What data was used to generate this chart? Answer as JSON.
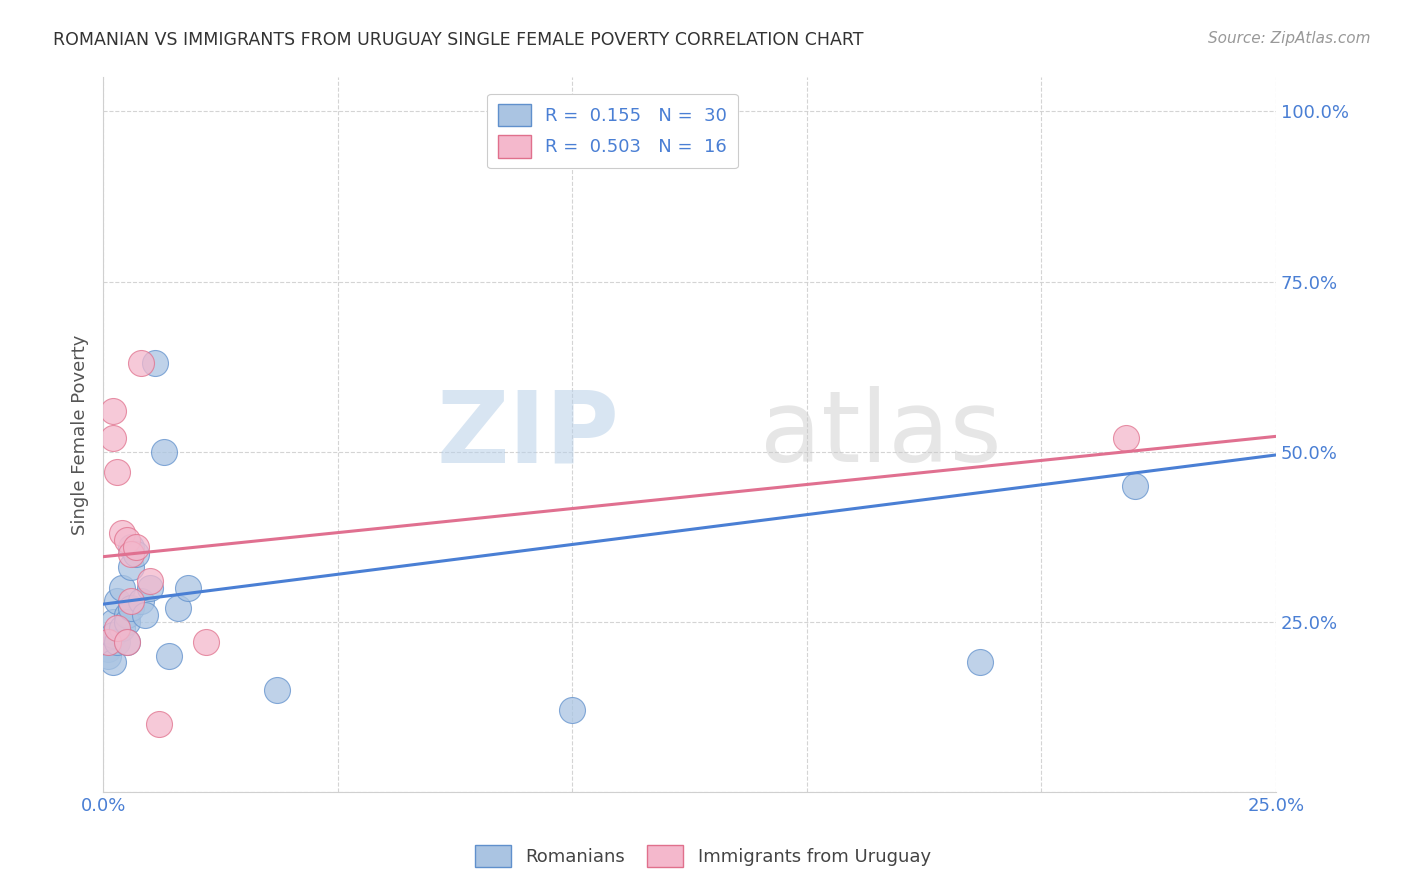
{
  "title": "ROMANIAN VS IMMIGRANTS FROM URUGUAY SINGLE FEMALE POVERTY CORRELATION CHART",
  "source": "Source: ZipAtlas.com",
  "ylabel": "Single Female Poverty",
  "watermark_zip": "ZIP",
  "watermark_atlas": "atlas",
  "blue_R": 0.155,
  "blue_N": 30,
  "pink_R": 0.503,
  "pink_N": 16,
  "blue_color": "#aac4e2",
  "blue_edge_color": "#6090cc",
  "blue_line_color": "#4a7fd4",
  "pink_color": "#f4b8cc",
  "pink_edge_color": "#e0708c",
  "pink_line_color": "#e07090",
  "xlim": [
    0.0,
    0.25
  ],
  "ylim": [
    0.0,
    1.05
  ],
  "ytick_positions": [
    0.0,
    0.25,
    0.5,
    0.75,
    1.0
  ],
  "ytick_labels": [
    "",
    "25.0%",
    "50.0%",
    "75.0%",
    "100.0%"
  ],
  "blue_points_x": [
    0.001,
    0.001,
    0.001,
    0.002,
    0.002,
    0.002,
    0.003,
    0.003,
    0.004,
    0.004,
    0.005,
    0.005,
    0.005,
    0.006,
    0.006,
    0.006,
    0.007,
    0.008,
    0.009,
    0.01,
    0.011,
    0.013,
    0.014,
    0.016,
    0.018,
    0.037,
    0.1,
    0.13,
    0.187,
    0.22
  ],
  "blue_points_y": [
    0.22,
    0.21,
    0.2,
    0.25,
    0.23,
    0.19,
    0.28,
    0.22,
    0.3,
    0.24,
    0.26,
    0.25,
    0.22,
    0.36,
    0.33,
    0.27,
    0.35,
    0.28,
    0.26,
    0.3,
    0.63,
    0.5,
    0.2,
    0.27,
    0.3,
    0.15,
    0.12,
    0.975,
    0.19,
    0.45
  ],
  "pink_points_x": [
    0.001,
    0.002,
    0.002,
    0.003,
    0.003,
    0.004,
    0.005,
    0.005,
    0.006,
    0.006,
    0.007,
    0.008,
    0.01,
    0.012,
    0.022,
    0.218
  ],
  "pink_points_y": [
    0.22,
    0.56,
    0.52,
    0.47,
    0.24,
    0.38,
    0.37,
    0.22,
    0.35,
    0.28,
    0.36,
    0.63,
    0.31,
    0.1,
    0.22,
    0.52
  ],
  "background_color": "#ffffff",
  "grid_color": "#d0d0d0",
  "title_color": "#333333",
  "source_color": "#999999",
  "label_color": "#4a7fd4",
  "bottom_legend_color": "#444444"
}
